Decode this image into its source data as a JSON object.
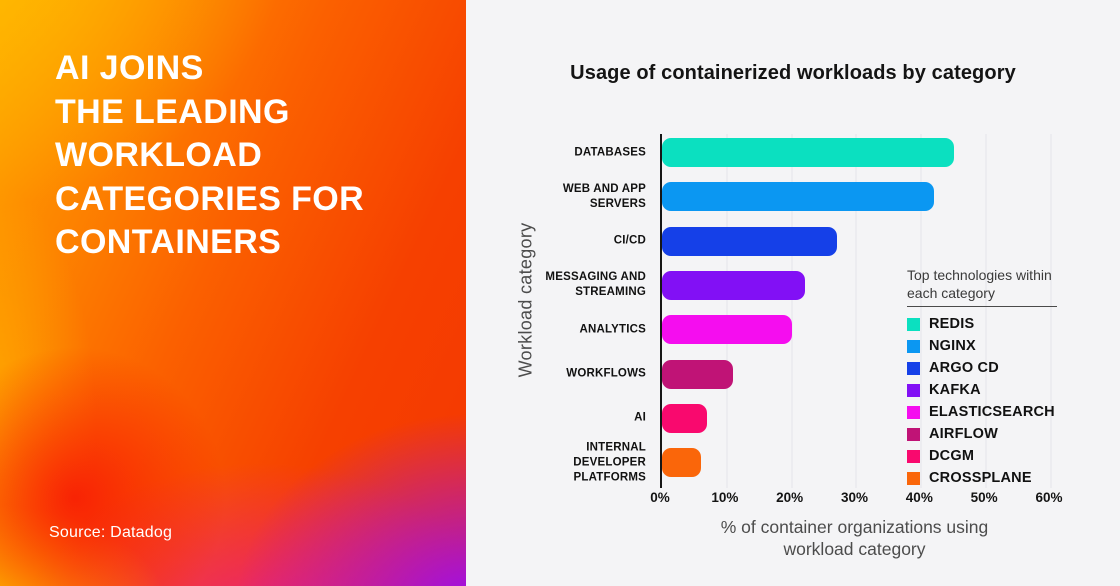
{
  "left_panel": {
    "title": "AI JOINS\nTHE LEADING\nWORKLOAD\nCATEGORIES FOR\nCONTAINERS",
    "source": "Source: Datadog",
    "gradient_colors": [
      "#ffb800",
      "#fb6000",
      "#f43702",
      "#e81e90",
      "#9a0cf5"
    ]
  },
  "chart_data": {
    "type": "bar",
    "orientation": "horizontal",
    "title": "Usage of containerized workloads by category",
    "xlabel": "% of container organizations using workload category",
    "ylabel": "Workload category",
    "xlim": [
      0,
      60
    ],
    "x_ticks": [
      "0%",
      "10%",
      "20%",
      "30%",
      "40%",
      "50%",
      "60%"
    ],
    "grid": true,
    "categories": [
      "DATABASES",
      "WEB AND APP SERVERS",
      "CI/CD",
      "MESSAGING AND STREAMING",
      "ANALYTICS",
      "WORKFLOWS",
      "AI",
      "INTERNAL DEVELOPER PLATFORMS"
    ],
    "values": [
      45,
      42,
      27,
      22,
      20,
      11,
      7,
      6
    ],
    "bar_colors": [
      "#0be0c0",
      "#0b97f2",
      "#1540e8",
      "#8210f5",
      "#f50def",
      "#c01376",
      "#f9096e",
      "#fa660a"
    ],
    "legend": {
      "title": "Top technologies within each category",
      "position": "right",
      "entries": [
        {
          "label": "REDIS",
          "color": "#0be0c0"
        },
        {
          "label": "NGINX",
          "color": "#0b97f2"
        },
        {
          "label": "ARGO CD",
          "color": "#1540e8"
        },
        {
          "label": "KAFKA",
          "color": "#8210f5"
        },
        {
          "label": "ELASTICSEARCH",
          "color": "#f50def"
        },
        {
          "label": "AIRFLOW",
          "color": "#c01376"
        },
        {
          "label": "DCGM",
          "color": "#f9096e"
        },
        {
          "label": "CROSSPLANE",
          "color": "#fa660a"
        }
      ]
    }
  }
}
